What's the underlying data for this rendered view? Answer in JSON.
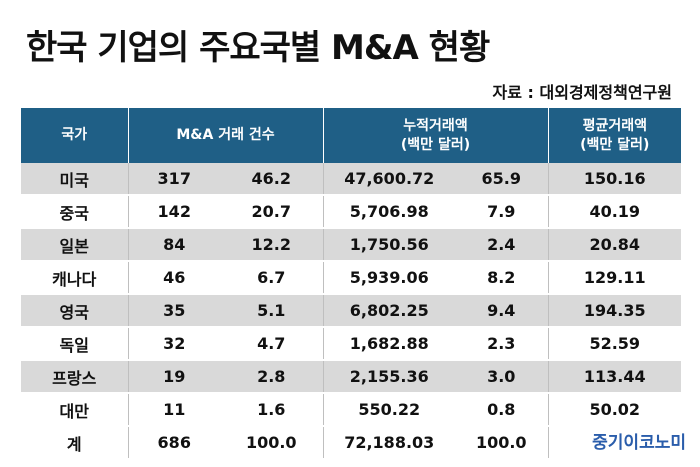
{
  "title": "한국 기업의 주요국별 M&A 현황",
  "source": "자료 : 대외경제정책연구원",
  "brand": "중기이코노미",
  "headers": {
    "country": "국가",
    "count": "M&A 거래 건수",
    "cumulative_line1": "누적거래액",
    "cumulative_line2": "(백만 달러)",
    "average_line1": "평균거래액",
    "average_line2": "(백만 달러)"
  },
  "rows": [
    {
      "country": "미국",
      "count": "317",
      "count_pct": "46.2",
      "cumulative": "47,600.72",
      "cumulative_pct": "65.9",
      "average": "150.16"
    },
    {
      "country": "중국",
      "count": "142",
      "count_pct": "20.7",
      "cumulative": "5,706.98",
      "cumulative_pct": "7.9",
      "average": "40.19"
    },
    {
      "country": "일본",
      "count": "84",
      "count_pct": "12.2",
      "cumulative": "1,750.56",
      "cumulative_pct": "2.4",
      "average": "20.84"
    },
    {
      "country": "캐나다",
      "count": "46",
      "count_pct": "6.7",
      "cumulative": "5,939.06",
      "cumulative_pct": "8.2",
      "average": "129.11"
    },
    {
      "country": "영국",
      "count": "35",
      "count_pct": "5.1",
      "cumulative": "6,802.25",
      "cumulative_pct": "9.4",
      "average": "194.35"
    },
    {
      "country": "독일",
      "count": "32",
      "count_pct": "4.7",
      "cumulative": "1,682.88",
      "cumulative_pct": "2.3",
      "average": "52.59"
    },
    {
      "country": "프랑스",
      "count": "19",
      "count_pct": "2.8",
      "cumulative": "2,155.36",
      "cumulative_pct": "3.0",
      "average": "113.44"
    },
    {
      "country": "대만",
      "count": "11",
      "count_pct": "1.6",
      "cumulative": "550.22",
      "cumulative_pct": "0.8",
      "average": "50.02"
    }
  ],
  "total": {
    "country": "계",
    "count": "686",
    "count_pct": "100.0",
    "cumulative": "72,188.03",
    "cumulative_pct": "100.0"
  },
  "colors": {
    "header_bg": "#1f5f86",
    "header_text": "#ffffff",
    "stripe_bg": "#d9d9d9",
    "brand_text": "#2a5dab"
  }
}
